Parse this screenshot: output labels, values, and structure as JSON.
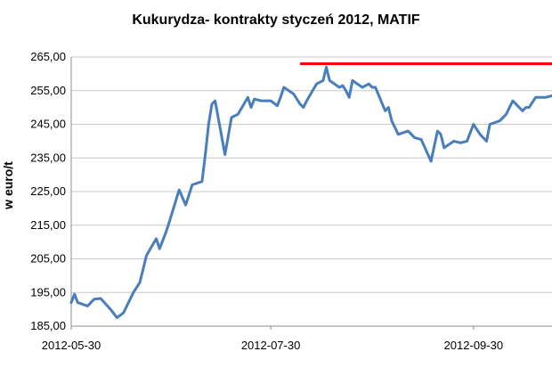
{
  "chart_data": {
    "type": "line",
    "title": "Kukurydza- kontrakty styczeń 2012, MATIF",
    "ylabel": "w euro/t",
    "ylim": [
      185,
      265
    ],
    "yticks": [
      "185,00",
      "195,00",
      "205,00",
      "215,00",
      "225,00",
      "235,00",
      "245,00",
      "255,00",
      "265,00"
    ],
    "xticks": [
      "2012-05-30",
      "2012-07-30",
      "2012-09-30"
    ],
    "grid": "horizontal",
    "colors": {
      "series": "#4a7ebb",
      "reference": "#ff0000",
      "grid": "#c8c8c8"
    },
    "reference_line": {
      "y": 263,
      "x_start": "2012-08-08",
      "x_end": "2012-10-24"
    },
    "series": [
      {
        "x": [
          "2012-05-30",
          "2012-05-31",
          "2012-06-01",
          "2012-06-04",
          "2012-06-06",
          "2012-06-08",
          "2012-06-11",
          "2012-06-13",
          "2012-06-15",
          "2012-06-18",
          "2012-06-20",
          "2012-06-21",
          "2012-06-22",
          "2012-06-25",
          "2012-06-26",
          "2012-06-27",
          "2012-06-28",
          "2012-06-29",
          "2012-07-02",
          "2012-07-04",
          "2012-07-06",
          "2012-07-09",
          "2012-07-10",
          "2012-07-11",
          "2012-07-12",
          "2012-07-13",
          "2012-07-16",
          "2012-07-18",
          "2012-07-20",
          "2012-07-23",
          "2012-07-24",
          "2012-07-25",
          "2012-07-27",
          "2012-07-30",
          "2012-08-01",
          "2012-08-02",
          "2012-08-03",
          "2012-08-06",
          "2012-08-08",
          "2012-08-09",
          "2012-08-10",
          "2012-08-13",
          "2012-08-14",
          "2012-08-15",
          "2012-08-16",
          "2012-08-17",
          "2012-08-20",
          "2012-08-21",
          "2012-08-22",
          "2012-08-23",
          "2012-08-24",
          "2012-08-27",
          "2012-08-29",
          "2012-08-30",
          "2012-08-31",
          "2012-09-03",
          "2012-09-04",
          "2012-09-05",
          "2012-09-07",
          "2012-09-10",
          "2012-09-12",
          "2012-09-14",
          "2012-09-17",
          "2012-09-19",
          "2012-09-20",
          "2012-09-21",
          "2012-09-24",
          "2012-09-26",
          "2012-09-28",
          "2012-09-30",
          "2012-10-02",
          "2012-10-04",
          "2012-10-05",
          "2012-10-08",
          "2012-10-10",
          "2012-10-12",
          "2012-10-15",
          "2012-10-16",
          "2012-10-17",
          "2012-10-19",
          "2012-10-22",
          "2012-10-24"
        ],
        "values": [
          192.0,
          194.5,
          192.0,
          191.0,
          193.0,
          193.2,
          190.0,
          187.5,
          189.0,
          195.0,
          198.0,
          202.0,
          206.0,
          211.0,
          208.0,
          210.5,
          213.0,
          216.0,
          225.5,
          221.0,
          227.0,
          228.0,
          236.0,
          245.0,
          251.0,
          252.0,
          236.0,
          247.0,
          248.0,
          253.0,
          250.0,
          252.5,
          252.0,
          252.0,
          250.5,
          253.0,
          256.0,
          254.0,
          251.0,
          250.0,
          252.0,
          257.0,
          257.5,
          258.0,
          262.0,
          258.0,
          256.0,
          256.5,
          255.0,
          253.0,
          258.0,
          256.0,
          257.0,
          256.0,
          256.0,
          249.0,
          250.0,
          246.0,
          242.0,
          243.0,
          241.0,
          240.5,
          234.0,
          243.0,
          242.0,
          238.0,
          240.0,
          239.5,
          240.0,
          245.0,
          242.0,
          240.0,
          245.0,
          246.0,
          248.0,
          252.0,
          249.0,
          250.0,
          250.0,
          253.0,
          253.0,
          253.5
        ]
      }
    ]
  }
}
